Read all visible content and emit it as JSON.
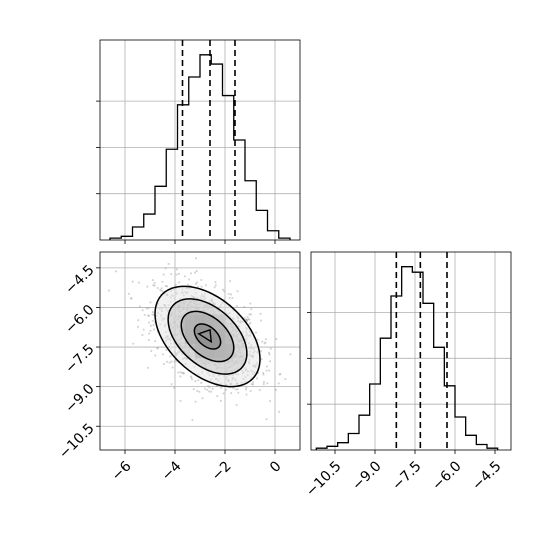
{
  "chart_data": [
    {
      "type": "histogram",
      "panel": "top-left",
      "parameter": "x",
      "bins": [
        -6.6,
        -6.15,
        -5.7,
        -5.25,
        -4.8,
        -4.35,
        -3.9,
        -3.45,
        -3.0,
        -2.55,
        -2.1,
        -1.65,
        -1.2,
        -0.75,
        -0.3,
        0.15,
        0.6
      ],
      "counts": [
        1,
        2,
        7,
        14,
        29,
        49,
        73,
        88,
        100,
        95,
        78,
        54,
        32,
        16,
        5,
        1
      ],
      "quantiles": [
        -3.7,
        -2.6,
        -1.6
      ],
      "xlim": [
        -7.0,
        1.0
      ],
      "ylim": [
        0,
        108
      ],
      "grid": true
    },
    {
      "type": "scatter-contour",
      "panel": "bottom-left",
      "parameters": [
        "x",
        "y"
      ],
      "center": [
        -2.7,
        -7.1
      ],
      "std": [
        1.05,
        0.95
      ],
      "correlation": -0.45,
      "contour_levels_sigma": [
        0.5,
        1.0,
        1.5,
        2.0
      ],
      "density_cells": [
        {
          "x": -3.4,
          "y": -6.55,
          "shade": 0.45
        },
        {
          "x": -3.0,
          "y": -6.55,
          "shade": 0.6
        },
        {
          "x": -2.6,
          "y": -6.55,
          "shade": 0.55
        },
        {
          "x": -2.2,
          "y": -6.55,
          "shade": 0.35
        },
        {
          "x": -3.4,
          "y": -7.1,
          "shade": 0.6
        },
        {
          "x": -3.0,
          "y": -7.1,
          "shade": 0.85
        },
        {
          "x": -2.6,
          "y": -7.1,
          "shade": 0.75
        },
        {
          "x": -2.2,
          "y": -7.1,
          "shade": 0.55
        },
        {
          "x": -3.0,
          "y": -7.65,
          "shade": 0.55
        },
        {
          "x": -2.6,
          "y": -7.65,
          "shade": 0.6
        },
        {
          "x": -2.2,
          "y": -7.65,
          "shade": 0.5
        },
        {
          "x": -1.8,
          "y": -7.65,
          "shade": 0.35
        }
      ],
      "xlim": [
        -7.0,
        1.0
      ],
      "ylim": [
        -11.4,
        -3.9
      ],
      "x_ticks": [
        -6,
        -4,
        -2,
        0
      ],
      "x_tick_labels": [
        "−6",
        "−4",
        "−2",
        "0"
      ],
      "y_ticks": [
        -4.5,
        -6.0,
        -7.5,
        -9.0,
        -10.5
      ],
      "y_tick_labels": [
        "−4.5",
        "−6.0",
        "−7.5",
        "−9.0",
        "−10.5"
      ],
      "grid": true
    },
    {
      "type": "histogram",
      "panel": "bottom-right",
      "parameter": "y",
      "bins": [
        -11.2,
        -10.8,
        -10.4,
        -10.0,
        -9.6,
        -9.2,
        -8.8,
        -8.4,
        -8.0,
        -7.6,
        -7.2,
        -6.8,
        -6.4,
        -6.0,
        -5.6,
        -5.2,
        -4.8,
        -4.4
      ],
      "counts": [
        1,
        2,
        4,
        9,
        19,
        36,
        61,
        84,
        100,
        97,
        80,
        56,
        35,
        18,
        8,
        3,
        1
      ],
      "quantiles": [
        -8.2,
        -7.3,
        -6.3
      ],
      "xlim": [
        -11.4,
        -3.9
      ],
      "ylim": [
        0,
        108
      ],
      "x_ticks": [
        -10.5,
        -9.0,
        -7.5,
        -6.0,
        -4.5
      ],
      "x_tick_labels": [
        "−10.5",
        "−9.0",
        "−7.5",
        "−6.0",
        "−4.5"
      ],
      "grid": true
    }
  ]
}
